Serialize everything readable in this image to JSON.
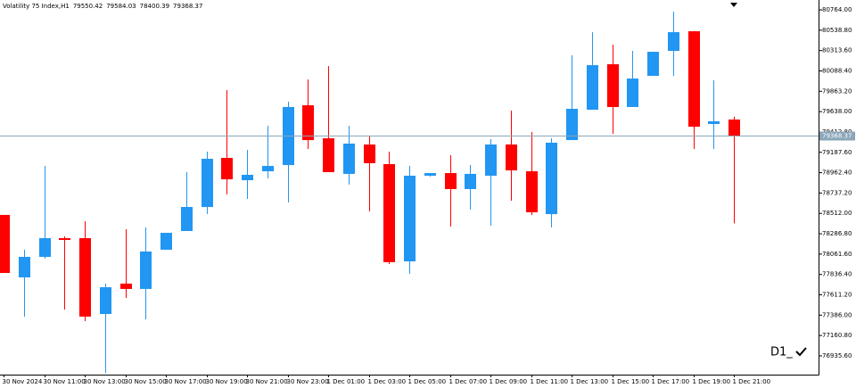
{
  "chart_data": {
    "type": "candlestick",
    "title": "Volatility 75 Index,H1",
    "annotation": "D1_",
    "up_color": "#2196f3",
    "down_color": "#ff0000",
    "price_line_color": "#8aa6b8",
    "categories": [
      "30 Nov 2024",
      null,
      "30 Nov 11:00",
      null,
      "30 Nov 13:00",
      null,
      "30 Nov 15:00",
      null,
      "30 Nov 17:00",
      null,
      "30 Nov 19:00",
      null,
      "30 Nov 21:00",
      null,
      "30 Nov 23:00",
      null,
      "1 Dec 01:00",
      null,
      "1 Dec 03:00",
      null,
      "1 Dec 05:00",
      null,
      "1 Dec 07:00",
      null,
      "1 Dec 09:00",
      null,
      "1 Dec 11:00",
      null,
      "1 Dec 13:00",
      null,
      "1 Dec 15:00",
      null,
      "1 Dec 17:00",
      null,
      "1 Dec 19:00",
      null,
      "1 Dec 21:00"
    ],
    "open": [
      78495,
      77804,
      78031,
      78238,
      78238,
      77399,
      77735,
      77676,
      78110,
      78317,
      78583,
      79126,
      78879,
      78978,
      79047,
      79708,
      79343,
      78949,
      79274,
      79057,
      77981,
      78929,
      78958,
      78781,
      78929,
      79274,
      78978,
      78504,
      79323,
      79659,
      80162,
      79689,
      80034,
      80310,
      80527,
      79501,
      79550.42
    ],
    "high": [
      78495,
      78110,
      79037,
      78258,
      78426,
      77735,
      78337,
      78357,
      78297,
      78968,
      79195,
      79876,
      79215,
      79481,
      79748,
      79994,
      80142,
      79481,
      79373,
      79195,
      79037,
      78958,
      79156,
      79047,
      79333,
      79649,
      79412,
      79343,
      80261,
      80517,
      80379,
      80310,
      80300,
      80744,
      80527,
      79985,
      79584.03
    ],
    "low": [
      77853,
      77370,
      78011,
      77449,
      77320,
      76748,
      77577,
      77340,
      78110,
      78317,
      78504,
      78722,
      78672,
      78899,
      78633,
      79225,
      78968,
      78830,
      78534,
      77952,
      77843,
      78919,
      78366,
      78554,
      78376,
      78653,
      78495,
      78357,
      79323,
      79659,
      79392,
      79689,
      80034,
      80034,
      79225,
      79225,
      78400.39
    ],
    "close": [
      77853,
      78031,
      78238,
      78218,
      77370,
      77695,
      77676,
      78090,
      78297,
      78583,
      79116,
      78889,
      78939,
      79037,
      79689,
      79323,
      78968,
      79284,
      79067,
      77972,
      78929,
      78958,
      78781,
      78949,
      79274,
      78988,
      78524,
      79294,
      79669,
      80152,
      79689,
      80004,
      80300,
      80517,
      79471,
      79531,
      79368.37
    ],
    "ylim": [
      76728,
      80873
    ],
    "yticks": [
      {
        "value": 80764.0,
        "label": "80764.00"
      },
      {
        "value": 80538.8,
        "label": "80538.80"
      },
      {
        "value": 80313.6,
        "label": "80313.60"
      },
      {
        "value": 80088.4,
        "label": "80088.40"
      },
      {
        "value": 79863.2,
        "label": "79863.20"
      },
      {
        "value": 79638.0,
        "label": "79638.00"
      },
      {
        "value": 79412.8,
        "label": "79412.80"
      },
      {
        "value": 79187.6,
        "label": "79187.60"
      },
      {
        "value": 78962.4,
        "label": "78962.40"
      },
      {
        "value": 78737.2,
        "label": "78737.20"
      },
      {
        "value": 78512.0,
        "label": "78512.00"
      },
      {
        "value": 78286.8,
        "label": "78286.80"
      },
      {
        "value": 78061.6,
        "label": "78061.60"
      },
      {
        "value": 77836.4,
        "label": "77836.40"
      },
      {
        "value": 77611.2,
        "label": "77611.20"
      },
      {
        "value": 77386.0,
        "label": "77386.00"
      },
      {
        "value": 77160.8,
        "label": "77160.80"
      },
      {
        "value": 76935.6,
        "label": "76935.60"
      }
    ],
    "grid": false
  }
}
